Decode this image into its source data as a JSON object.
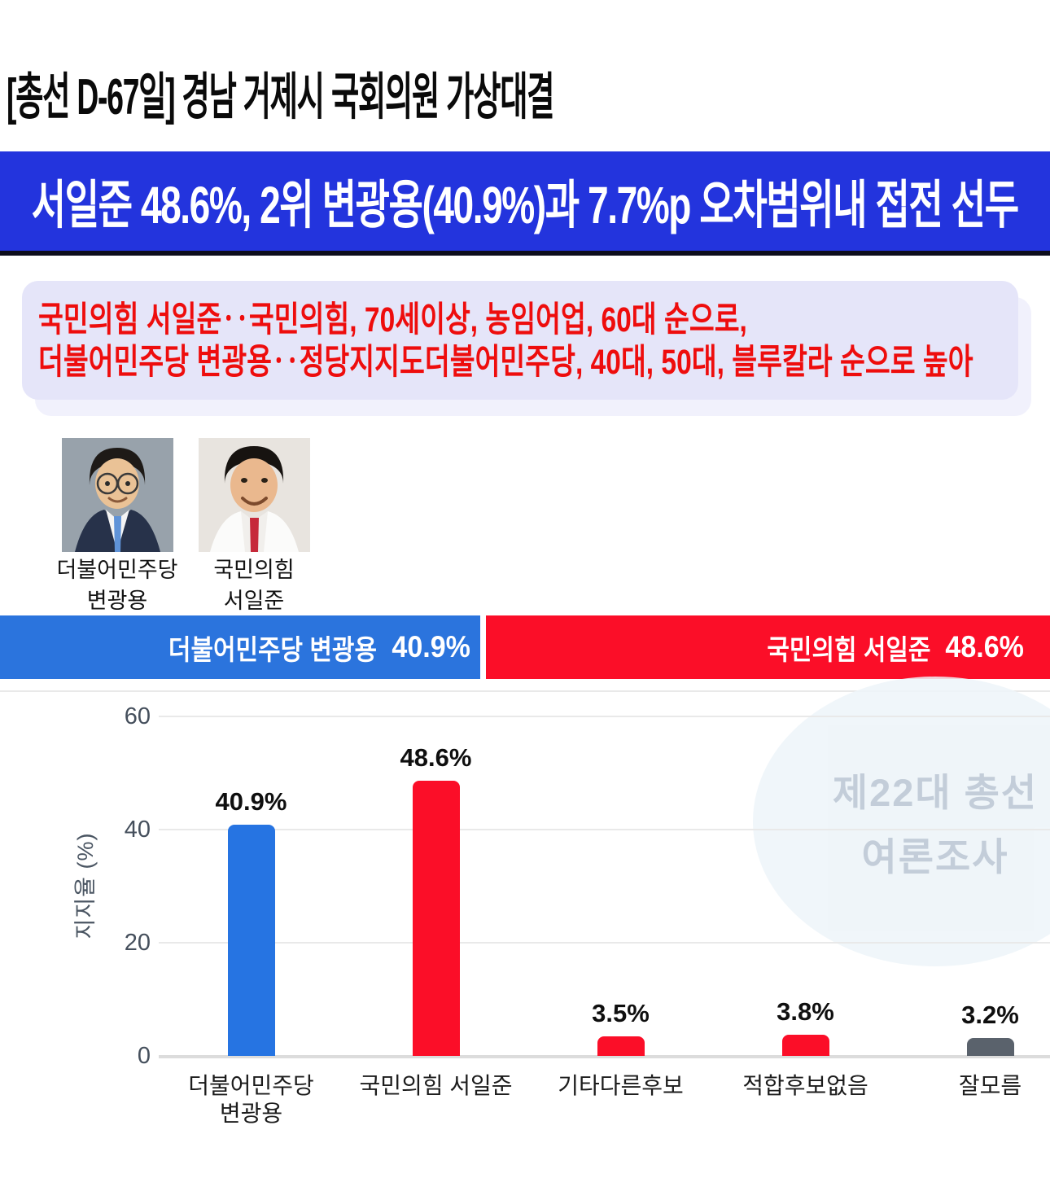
{
  "page": {
    "title": "[총선 D-67일] 경남 거제시 국회의원 가상대결"
  },
  "banner": {
    "headline": "서일준 48.6%, 2위 변광용(40.9%)과 7.7%p 오차범위내 접전 선두"
  },
  "summary": {
    "line1": "국민의힘 서일준‥국민의힘, 70세이상, 농임어업, 60대 순으로,",
    "line2": "더불어민주당 변광용‥정당지지도더불어민주당, 40대, 50대, 블루칼라 순으로 높아"
  },
  "candidates": [
    {
      "party": "더불어민주당",
      "name": "변광용"
    },
    {
      "party": "국민의힘",
      "name": "서일준"
    }
  ],
  "watermark": {
    "line1": "제22대 총선",
    "line2": "여론조사"
  },
  "colors": {
    "banner_blue": "#2334dd",
    "race_blue": "#2b74dd",
    "race_red": "#fb0e28",
    "chart_blue": "#2674e2",
    "chart_red": "#fb0e28",
    "chart_gray": "#5a626c",
    "summary_bg": "#e5e5f9",
    "summary_text_red": "#ee0d0d"
  },
  "chart_data": [
    {
      "type": "bar",
      "orientation": "horizontal-stacked",
      "note": "head-to-head race bar",
      "series": [
        {
          "name": "더불어민주당 변광용",
          "label": "더불어민주당 변광용",
          "value": 40.9,
          "value_label": "40.9%",
          "color": "#2b74dd"
        },
        {
          "name": "국민의힘 서일준",
          "label": "국민의힘 서일준",
          "value": 48.6,
          "value_label": "48.6%",
          "color": "#fb0e28"
        }
      ]
    },
    {
      "type": "bar",
      "title": "",
      "xlabel": "",
      "ylabel": "지지율 (%)",
      "ylim": [
        0,
        60
      ],
      "yticks": [
        0,
        20,
        40,
        60
      ],
      "grid": true,
      "legend_position": "none",
      "categories": [
        "더불어민주당 변광용",
        "국민의힘 서일준",
        "기타다른후보",
        "적합후보없음",
        "잘모름"
      ],
      "category_lines": [
        [
          "더불어민주당",
          "변광용"
        ],
        [
          "국민의힘 서일준"
        ],
        [
          "기타다른후보"
        ],
        [
          "적합후보없음"
        ],
        [
          "잘모름"
        ]
      ],
      "values": [
        40.9,
        48.6,
        3.5,
        3.8,
        3.2
      ],
      "value_labels": [
        "40.9%",
        "48.6%",
        "3.5%",
        "3.8%",
        "3.2%"
      ],
      "colors": [
        "#2674e2",
        "#fb0e28",
        "#fb0e28",
        "#fb0e28",
        "#5a626c"
      ]
    }
  ]
}
